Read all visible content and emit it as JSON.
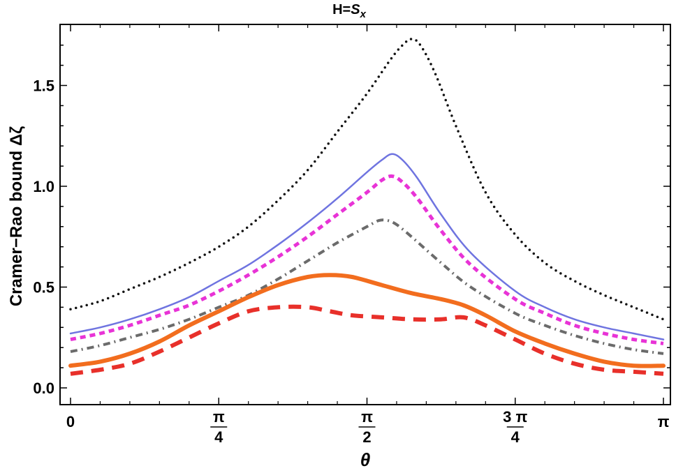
{
  "chart_data": {
    "type": "line",
    "title": {
      "prefix": "H=",
      "symbol": "S",
      "subscript": "x"
    },
    "xlabel": "θ",
    "ylabel": "Cramer−Rao bound Δζ",
    "xlim": [
      0,
      3.14159
    ],
    "ylim": [
      -0.05,
      1.8
    ],
    "x_ticks": [
      {
        "value": 0,
        "type": "plain",
        "text": "0"
      },
      {
        "value": 0.7854,
        "type": "frac",
        "num": "π",
        "den": "4"
      },
      {
        "value": 1.5708,
        "type": "frac",
        "num": "π",
        "den": "2"
      },
      {
        "value": 2.3562,
        "type": "frac",
        "num": "3 π",
        "den": "4"
      },
      {
        "value": 3.14159,
        "type": "plain",
        "text": "π"
      }
    ],
    "y_ticks": [
      {
        "value": 0.0,
        "label": "0.0"
      },
      {
        "value": 0.5,
        "label": "0.5"
      },
      {
        "value": 1.0,
        "label": "1.0"
      },
      {
        "value": 1.5,
        "label": "1.5"
      }
    ],
    "grid": false,
    "series": [
      {
        "color": "#111111",
        "style": "dotted",
        "points": [
          [
            0,
            0.39
          ],
          [
            0.1571,
            0.43
          ],
          [
            0.3142,
            0.49
          ],
          [
            0.4712,
            0.55
          ],
          [
            0.6283,
            0.62
          ],
          [
            0.7854,
            0.7
          ],
          [
            0.9425,
            0.8
          ],
          [
            1.0996,
            0.93
          ],
          [
            1.2566,
            1.08
          ],
          [
            1.4137,
            1.27
          ],
          [
            1.5708,
            1.46
          ],
          [
            1.6965,
            1.63
          ],
          [
            1.7593,
            1.7
          ],
          [
            1.8064,
            1.73
          ],
          [
            1.8535,
            1.7
          ],
          [
            1.9321,
            1.56
          ],
          [
            2.042,
            1.3
          ],
          [
            2.1991,
            0.97
          ],
          [
            2.3562,
            0.76
          ],
          [
            2.5133,
            0.62
          ],
          [
            2.6704,
            0.53
          ],
          [
            2.8274,
            0.46
          ],
          [
            2.9845,
            0.4
          ],
          [
            3.1416,
            0.34
          ]
        ]
      },
      {
        "color": "#6f74e0",
        "style": "solid",
        "points": [
          [
            0,
            0.27
          ],
          [
            0.1571,
            0.3
          ],
          [
            0.3142,
            0.34
          ],
          [
            0.4712,
            0.39
          ],
          [
            0.6283,
            0.45
          ],
          [
            0.7854,
            0.53
          ],
          [
            0.9425,
            0.61
          ],
          [
            1.0996,
            0.71
          ],
          [
            1.2566,
            0.82
          ],
          [
            1.4137,
            0.94
          ],
          [
            1.5708,
            1.07
          ],
          [
            1.6493,
            1.13
          ],
          [
            1.7043,
            1.16
          ],
          [
            1.7593,
            1.13
          ],
          [
            1.8378,
            1.04
          ],
          [
            1.9635,
            0.86
          ],
          [
            2.1206,
            0.67
          ],
          [
            2.3562,
            0.48
          ],
          [
            2.5133,
            0.4
          ],
          [
            2.6704,
            0.34
          ],
          [
            2.8274,
            0.3
          ],
          [
            2.9845,
            0.27
          ],
          [
            3.1416,
            0.24
          ]
        ]
      },
      {
        "color": "#e833d6",
        "style": "dashed",
        "points": [
          [
            0,
            0.24
          ],
          [
            0.1571,
            0.27
          ],
          [
            0.3142,
            0.31
          ],
          [
            0.4712,
            0.36
          ],
          [
            0.6283,
            0.41
          ],
          [
            0.7854,
            0.48
          ],
          [
            0.9425,
            0.56
          ],
          [
            1.0996,
            0.65
          ],
          [
            1.2566,
            0.75
          ],
          [
            1.4137,
            0.86
          ],
          [
            1.5708,
            0.97
          ],
          [
            1.6493,
            1.03
          ],
          [
            1.7043,
            1.05
          ],
          [
            1.7593,
            1.02
          ],
          [
            1.8378,
            0.94
          ],
          [
            1.9635,
            0.78
          ],
          [
            2.1206,
            0.61
          ],
          [
            2.3562,
            0.44
          ],
          [
            2.5133,
            0.37
          ],
          [
            2.6704,
            0.31
          ],
          [
            2.8274,
            0.27
          ],
          [
            2.9845,
            0.24
          ],
          [
            3.1416,
            0.22
          ]
        ]
      },
      {
        "color": "#6b6b6b",
        "style": "dashdot",
        "points": [
          [
            0,
            0.18
          ],
          [
            0.1571,
            0.21
          ],
          [
            0.3142,
            0.25
          ],
          [
            0.4712,
            0.29
          ],
          [
            0.6283,
            0.34
          ],
          [
            0.7854,
            0.4
          ],
          [
            0.9425,
            0.46
          ],
          [
            1.0996,
            0.54
          ],
          [
            1.2566,
            0.63
          ],
          [
            1.4137,
            0.72
          ],
          [
            1.5708,
            0.8
          ],
          [
            1.6336,
            0.83
          ],
          [
            1.6807,
            0.83
          ],
          [
            1.7279,
            0.81
          ],
          [
            1.8064,
            0.75
          ],
          [
            1.9635,
            0.62
          ],
          [
            2.1206,
            0.5
          ],
          [
            2.3562,
            0.37
          ],
          [
            2.5133,
            0.31
          ],
          [
            2.6704,
            0.26
          ],
          [
            2.8274,
            0.22
          ],
          [
            2.9845,
            0.19
          ],
          [
            3.1416,
            0.17
          ]
        ]
      },
      {
        "color": "#f26d1e",
        "style": "solid-thick",
        "points": [
          [
            0,
            0.11
          ],
          [
            0.1571,
            0.13
          ],
          [
            0.3142,
            0.17
          ],
          [
            0.4712,
            0.23
          ],
          [
            0.6283,
            0.31
          ],
          [
            0.7854,
            0.38
          ],
          [
            0.9425,
            0.45
          ],
          [
            1.0996,
            0.51
          ],
          [
            1.2566,
            0.55
          ],
          [
            1.3744,
            0.56
          ],
          [
            1.4923,
            0.55
          ],
          [
            1.6493,
            0.51
          ],
          [
            1.8064,
            0.47
          ],
          [
            1.9635,
            0.44
          ],
          [
            2.0813,
            0.41
          ],
          [
            2.1991,
            0.36
          ],
          [
            2.3562,
            0.28
          ],
          [
            2.5133,
            0.22
          ],
          [
            2.6704,
            0.17
          ],
          [
            2.8274,
            0.13
          ],
          [
            2.9845,
            0.11
          ],
          [
            3.1416,
            0.11
          ]
        ]
      },
      {
        "color": "#e8302a",
        "style": "dashed-thick",
        "points": [
          [
            0,
            0.07
          ],
          [
            0.1571,
            0.09
          ],
          [
            0.3142,
            0.12
          ],
          [
            0.4712,
            0.18
          ],
          [
            0.6283,
            0.25
          ],
          [
            0.7854,
            0.32
          ],
          [
            0.9425,
            0.38
          ],
          [
            1.0996,
            0.4
          ],
          [
            1.2566,
            0.4
          ],
          [
            1.3744,
            0.38
          ],
          [
            1.4923,
            0.36
          ],
          [
            1.6493,
            0.35
          ],
          [
            1.8064,
            0.34
          ],
          [
            1.9635,
            0.34
          ],
          [
            2.0813,
            0.35
          ],
          [
            2.1991,
            0.31
          ],
          [
            2.3562,
            0.24
          ],
          [
            2.5133,
            0.17
          ],
          [
            2.6704,
            0.12
          ],
          [
            2.8274,
            0.09
          ],
          [
            2.9845,
            0.08
          ],
          [
            3.1416,
            0.07
          ]
        ]
      }
    ]
  }
}
